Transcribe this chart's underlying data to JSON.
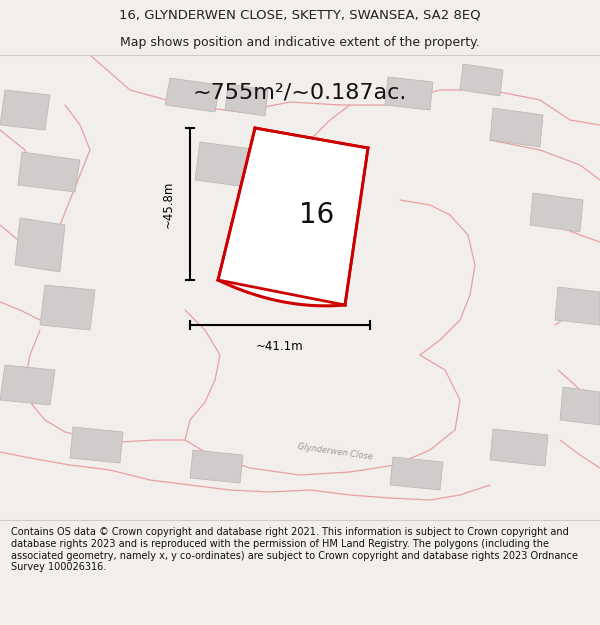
{
  "title_line1": "16, GLYNDERWEN CLOSE, SKETTY, SWANSEA, SA2 8EQ",
  "title_line2": "Map shows position and indicative extent of the property.",
  "area_text": "~755m²/~0.187ac.",
  "dim_vertical": "~45.8m",
  "dim_horizontal": "~41.1m",
  "label_16": "16",
  "street_label": "Glynderwen Close",
  "footer_text": "Contains OS data © Crown copyright and database right 2021. This information is subject to Crown copyright and database rights 2023 and is reproduced with the permission of HM Land Registry. The polygons (including the associated geometry, namely x, y co-ordinates) are subject to Crown copyright and database rights 2023 Ordnance Survey 100026316.",
  "bg_color": "#f2eeec",
  "map_bg": "#f2eeec",
  "red_color": "#cc0000",
  "pink_color": "#e8a0a0",
  "gray_fill": "#d0cccc",
  "title_fontsize": 9.5,
  "area_fontsize": 16,
  "footer_fontsize": 7.0,
  "dim_fontsize": 8.5,
  "label_fontsize": 20
}
